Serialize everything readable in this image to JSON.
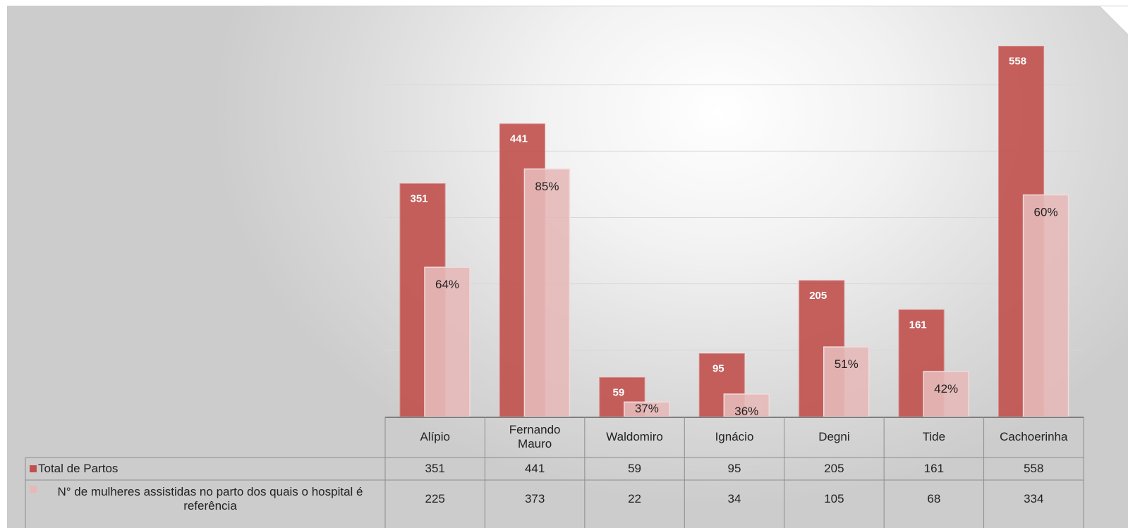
{
  "chart_data": {
    "type": "bar",
    "categories": [
      "Alípio",
      "Fernando Mauro",
      "Waldomiro",
      "Ignácio",
      "Degni",
      "Tide",
      "Cachoerinha"
    ],
    "series": [
      {
        "name": "Total de Partos",
        "values": [
          351,
          441,
          59,
          95,
          205,
          161,
          558
        ],
        "data_labels": [
          "351",
          "441",
          "59",
          "95",
          "205",
          "161",
          "558"
        ],
        "color": "#c0504d"
      },
      {
        "name": "N° de mulheres assistidas no parto dos quais o hospital é referência",
        "values": [
          225,
          373,
          22,
          34,
          105,
          68,
          334
        ],
        "data_labels": [
          "64%",
          "85%",
          "37%",
          "36%",
          "51%",
          "42%",
          "60%"
        ],
        "color": "#e6b9b8"
      }
    ],
    "ylim": [
      0,
      600
    ],
    "grid": true,
    "legend": "data-table",
    "data_table": true
  }
}
